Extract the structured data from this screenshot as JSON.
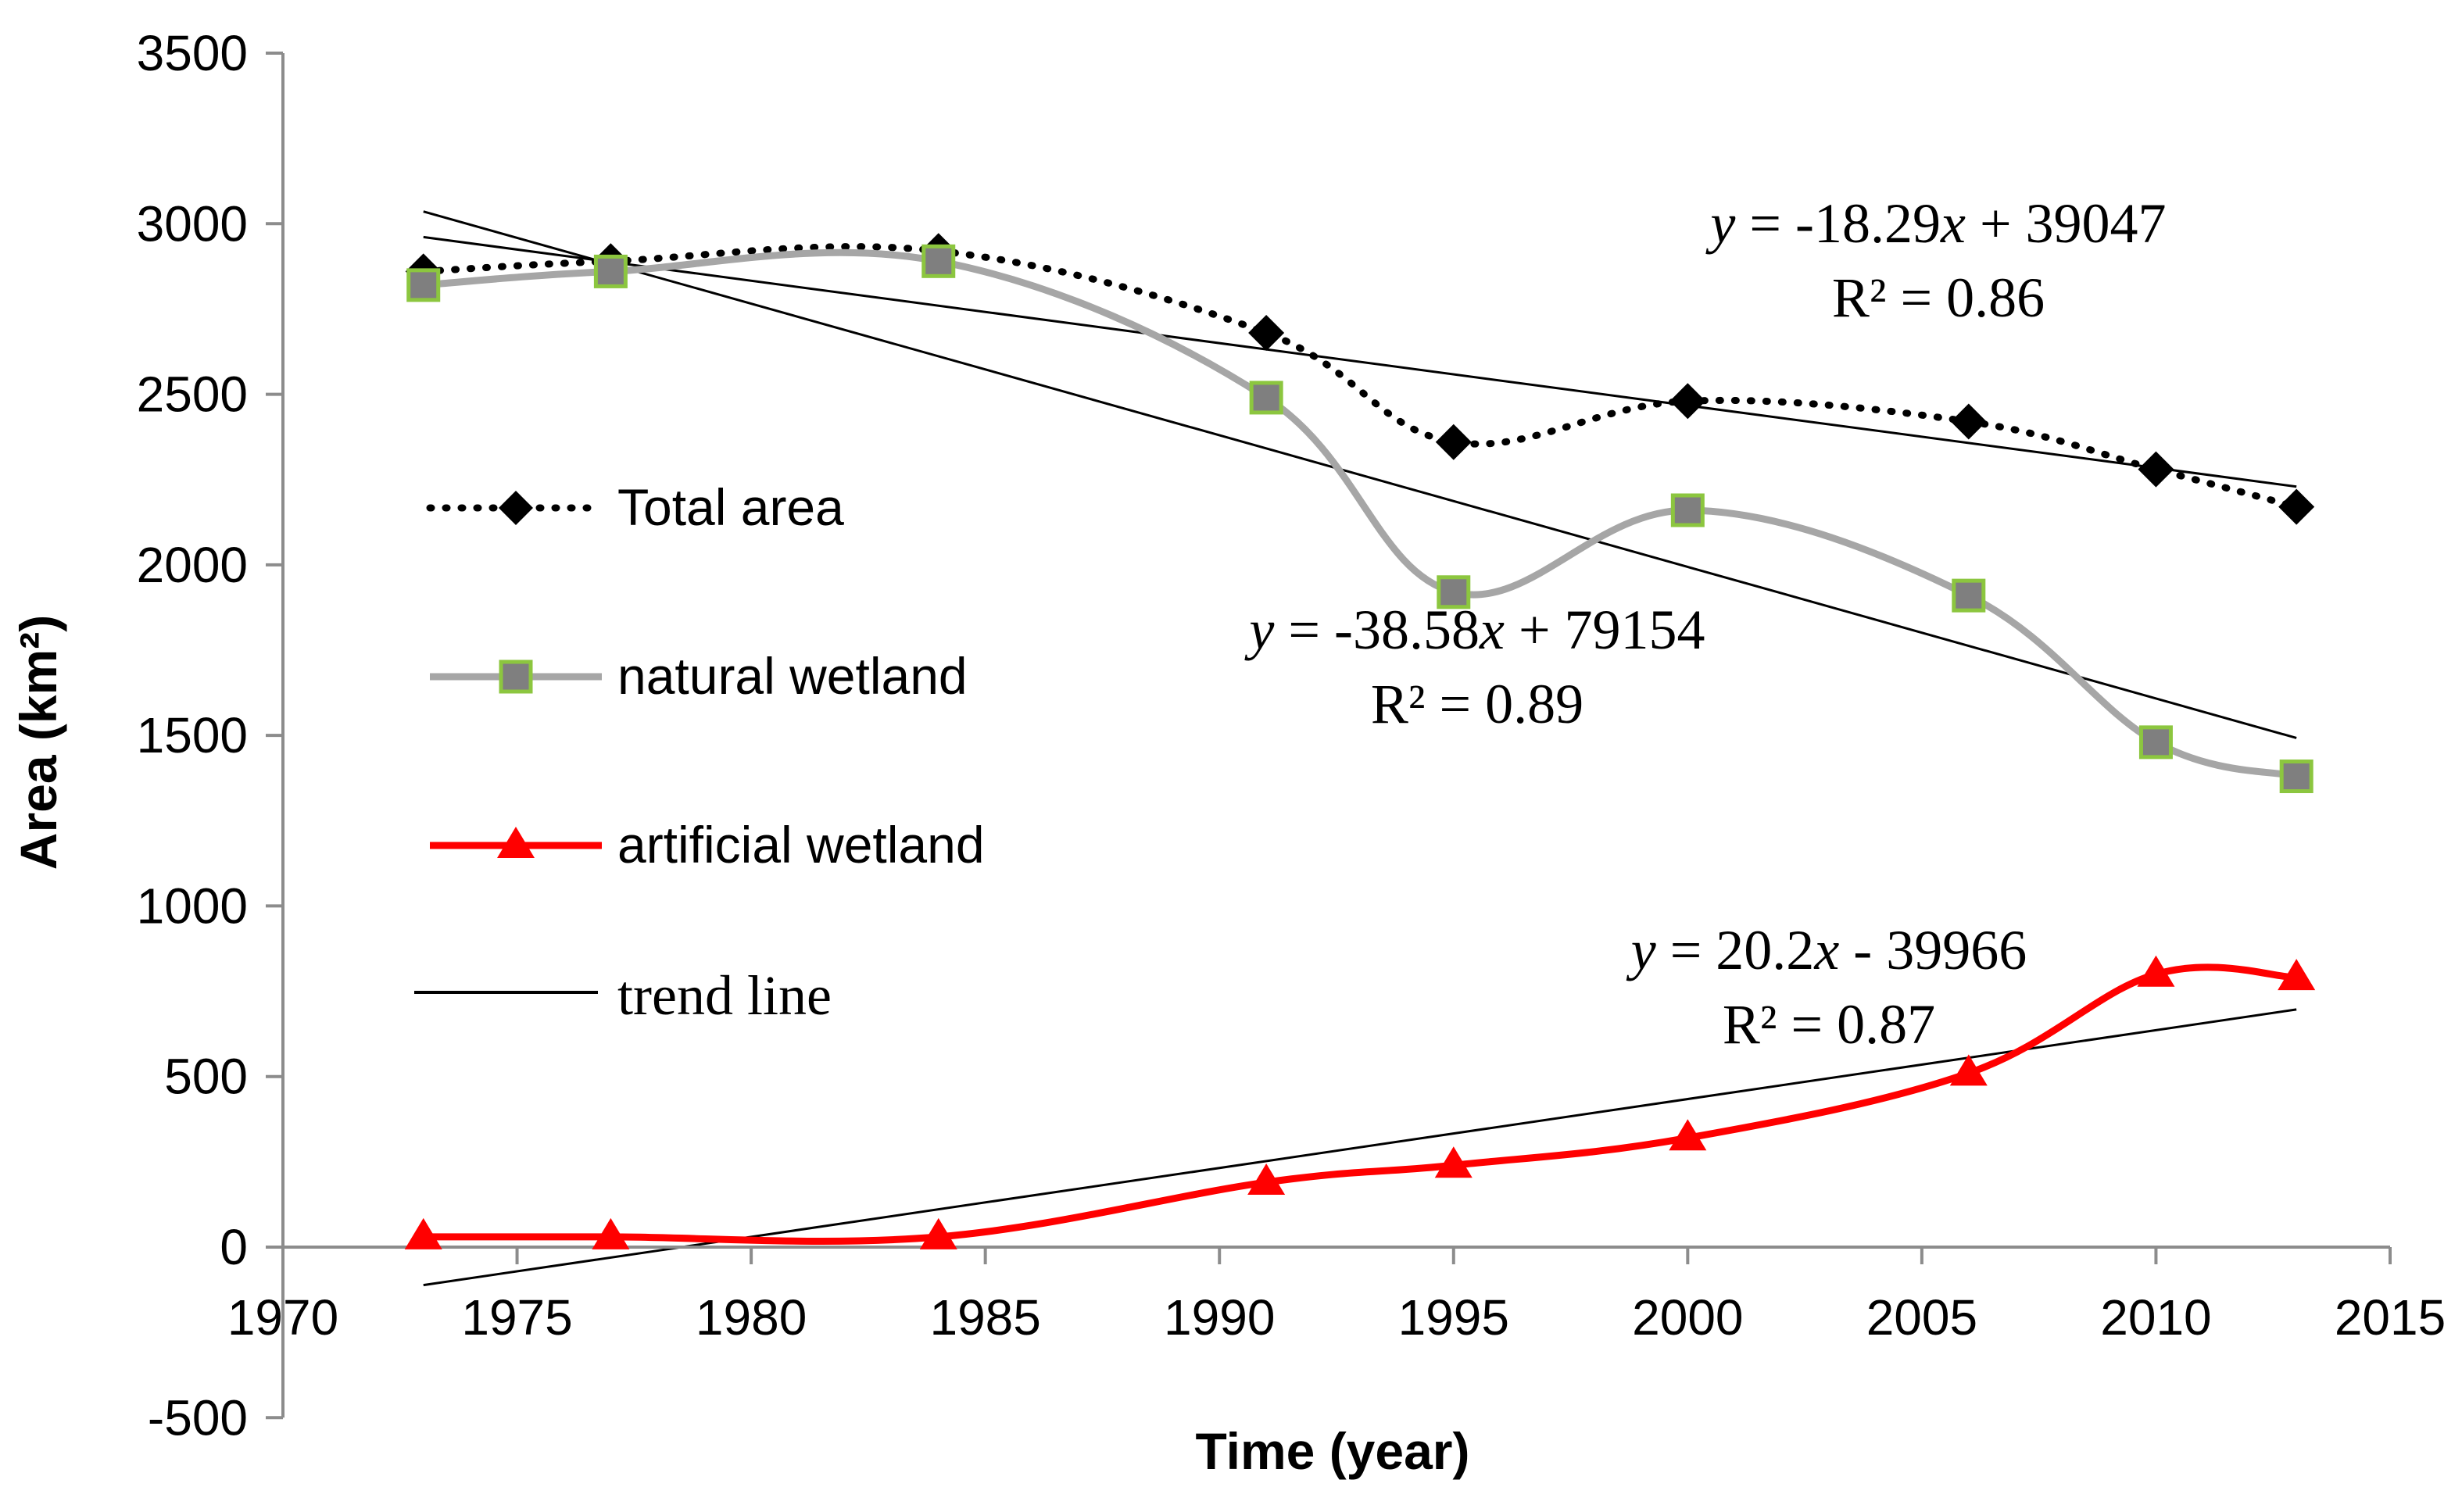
{
  "chart_data": {
    "type": "line",
    "title": "",
    "xlabel": "Time (year)",
    "ylabel": "Area (km²)",
    "xlim": [
      1970,
      2015
    ],
    "ylim": [
      -500,
      3500
    ],
    "x_ticks": [
      "1970",
      "1975",
      "1980",
      "1985",
      "1990",
      "1995",
      "2000",
      "2005",
      "2010",
      "2015"
    ],
    "y_ticks": [
      "-500",
      "0",
      "500",
      "1000",
      "1500",
      "2000",
      "2500",
      "3000",
      "3500"
    ],
    "x": [
      1973,
      1977,
      1984,
      1991,
      1995,
      2000,
      2006,
      2010,
      2013
    ],
    "series": [
      {
        "name": "Total area",
        "color": "#000000",
        "style": "dotted",
        "marker": "diamond",
        "values": [
          2860,
          2890,
          2920,
          2680,
          2360,
          2480,
          2420,
          2280,
          2170
        ]
      },
      {
        "name": "natural wetland",
        "color": "#a6a6a6",
        "style": "solid",
        "marker": "square",
        "marker_fill": "#7f7f7f",
        "marker_edge": "#8cc63f",
        "values": [
          2820,
          2860,
          2890,
          2490,
          1920,
          2160,
          1910,
          1480,
          1380
        ]
      },
      {
        "name": "artificial wetland",
        "color": "#ff0000",
        "style": "solid",
        "marker": "triangle",
        "values": [
          30,
          30,
          30,
          190,
          240,
          320,
          510,
          800,
          790
        ]
      }
    ],
    "trend_lines": [
      {
        "name": "Total area trend",
        "slope": -18.29,
        "intercept": 39047,
        "x_range": [
          1973,
          2013
        ]
      },
      {
        "name": "natural wetland trend",
        "slope": -38.58,
        "intercept": 79154,
        "x_range": [
          1973,
          2013
        ]
      },
      {
        "name": "artificial wetland trend",
        "slope": 20.2,
        "intercept": -39966,
        "x_range": [
          1973,
          2013
        ]
      }
    ],
    "legend": {
      "placement": "left",
      "entries": [
        "Total area",
        "natural wetland",
        "artificial wetland",
        "trend line"
      ]
    },
    "annotations": [
      {
        "y_prefix": "y",
        "equation": " = -18.29",
        "x_var": "x",
        "rest": " + 39047",
        "r2": "R² = 0.86"
      },
      {
        "y_prefix": "y",
        "equation": " = -38.58",
        "x_var": "x",
        "rest": " + 79154",
        "r2": "R² = 0.89"
      },
      {
        "y_prefix": "y",
        "equation": " = 20.2",
        "x_var": "x",
        "rest": " - 39966",
        "r2": "R² = 0.87"
      }
    ]
  }
}
